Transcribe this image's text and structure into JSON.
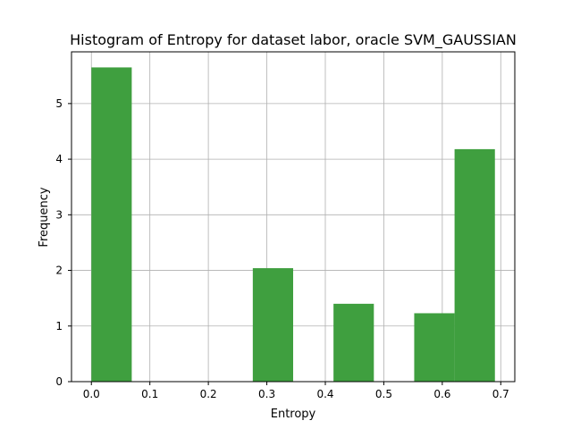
{
  "chart_data": {
    "type": "bar",
    "title": "Histogram of Entropy for dataset labor, oracle SVM_GAUSSIAN",
    "xlabel": "Entropy",
    "ylabel": "Frequency",
    "xlim": [
      -0.034,
      0.724
    ],
    "ylim": [
      0,
      5.93
    ],
    "xticks": [
      0.0,
      0.1,
      0.2,
      0.3,
      0.4,
      0.5,
      0.6,
      0.7
    ],
    "xtick_labels": [
      "0.0",
      "0.1",
      "0.2",
      "0.3",
      "0.4",
      "0.5",
      "0.6",
      "0.7"
    ],
    "yticks": [
      0,
      1,
      2,
      3,
      4,
      5
    ],
    "ytick_labels": [
      "0",
      "1",
      "2",
      "3",
      "4",
      "5"
    ],
    "grid": true,
    "bar_color": "#3f9f3f",
    "bins": [
      {
        "x0": 0.0,
        "x1": 0.069,
        "value": 5.65
      },
      {
        "x0": 0.069,
        "x1": 0.138,
        "value": 0
      },
      {
        "x0": 0.138,
        "x1": 0.207,
        "value": 0
      },
      {
        "x0": 0.207,
        "x1": 0.276,
        "value": 0
      },
      {
        "x0": 0.276,
        "x1": 0.345,
        "value": 2.04
      },
      {
        "x0": 0.345,
        "x1": 0.414,
        "value": 0
      },
      {
        "x0": 0.414,
        "x1": 0.483,
        "value": 1.4
      },
      {
        "x0": 0.483,
        "x1": 0.552,
        "value": 0
      },
      {
        "x0": 0.552,
        "x1": 0.621,
        "value": 1.23
      },
      {
        "x0": 0.621,
        "x1": 0.69,
        "value": 4.18
      }
    ]
  }
}
